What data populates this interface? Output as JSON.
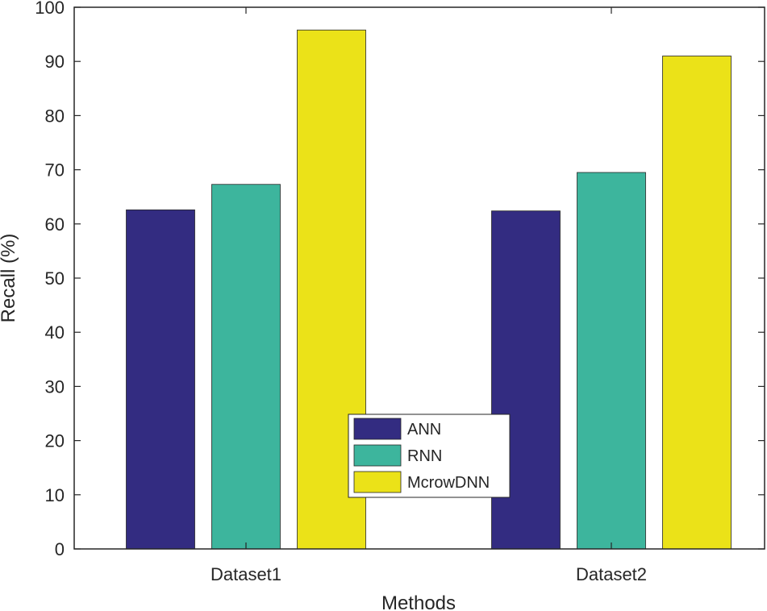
{
  "chart_data": {
    "type": "bar",
    "title": "",
    "xlabel": "Methods",
    "ylabel": "Recall (%)",
    "categories": [
      "Dataset1",
      "Dataset2"
    ],
    "ylim": [
      0,
      100
    ],
    "yticks": [
      0,
      10,
      20,
      30,
      40,
      50,
      60,
      70,
      80,
      90,
      100
    ],
    "grid": false,
    "legend_position": "center",
    "series": [
      {
        "name": "ANN",
        "color": "#332c81",
        "values": [
          62.6,
          62.4
        ]
      },
      {
        "name": "RNN",
        "color": "#3db59d",
        "values": [
          67.3,
          69.5
        ]
      },
      {
        "name": "McrowDNN",
        "color": "#ebe218",
        "values": [
          95.8,
          91.0
        ]
      }
    ]
  }
}
